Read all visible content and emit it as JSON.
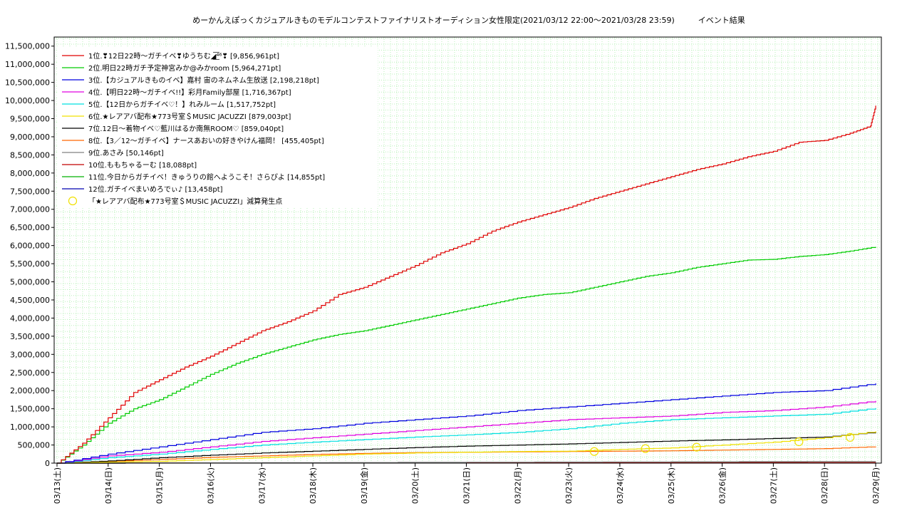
{
  "chart_data": {
    "type": "line",
    "title": "めーかんえぽっくカジュアルきものモデルコンテストファイナリストオーディション女性限定(2021/03/12 22:00～2021/03/28 23:59)　　　イベント結果",
    "xlabel": "",
    "ylabel": "",
    "ylim": [
      0,
      11750000
    ],
    "grid": true,
    "legend_placement": "top-left",
    "x_tick_labels": [
      "03/13(土)",
      "03/14(日)",
      "03/15(月)",
      "03/16(火)",
      "03/17(水)",
      "03/18(木)",
      "03/19(金)",
      "03/20(土)",
      "03/21(日)",
      "03/22(月)",
      "03/23(火)",
      "03/24(水)",
      "03/25(木)",
      "03/26(金)",
      "03/27(土)",
      "03/28(日)",
      "03/29(月)"
    ],
    "y_tick_labels": [
      "0",
      "500,000",
      "1,000,000",
      "1,500,000",
      "2,000,000",
      "2,500,000",
      "3,000,000",
      "3,500,000",
      "4,000,000",
      "4,500,000",
      "5,000,000",
      "5,500,000",
      "6,000,000",
      "6,500,000",
      "7,000,000",
      "7,500,000",
      "8,000,000",
      "8,500,000",
      "9,000,000",
      "9,500,000",
      "10,000,000",
      "10,500,000",
      "11,000,000",
      "11,500,000"
    ],
    "series": [
      {
        "name": "1位.❣12日22時〜ガチイベ❣ゆうちむ◢͟͞⁴⁶❣ [9,856,961pt]",
        "color": "#e00000",
        "x": [
          0,
          0.5,
          1,
          1.5,
          2,
          2.5,
          3,
          3.5,
          4,
          4.5,
          5,
          5.5,
          6,
          6.5,
          7,
          7.5,
          8,
          8.5,
          9,
          9.5,
          10,
          10.5,
          11,
          11.5,
          12,
          12.5,
          13,
          13.5,
          14,
          14.5,
          15,
          15.5,
          15.9,
          16
        ],
        "y": [
          0,
          550000,
          1250000,
          1950000,
          2300000,
          2650000,
          2950000,
          3300000,
          3650000,
          3900000,
          4200000,
          4650000,
          4850000,
          5150000,
          5450000,
          5800000,
          6050000,
          6400000,
          6650000,
          6850000,
          7050000,
          7300000,
          7500000,
          7700000,
          7900000,
          8100000,
          8250000,
          8450000,
          8600000,
          8850000,
          8900000,
          9100000,
          9300000,
          9856961
        ]
      },
      {
        "name": "2位.明日22時ガチ予定神宮みか@みかroom [5,964,271pt]",
        "color": "#00cc00",
        "x": [
          0,
          0.5,
          1,
          1.5,
          2,
          2.5,
          3,
          3.5,
          4,
          4.5,
          5,
          5.5,
          6,
          6.5,
          7,
          7.5,
          8,
          8.5,
          9,
          9.5,
          10,
          10.5,
          11,
          11.5,
          12,
          12.5,
          13,
          13.5,
          14,
          14.5,
          15,
          15.5,
          16
        ],
        "y": [
          0,
          500000,
          1100000,
          1500000,
          1750000,
          2100000,
          2450000,
          2750000,
          3000000,
          3200000,
          3400000,
          3550000,
          3650000,
          3800000,
          3950000,
          4100000,
          4250000,
          4400000,
          4550000,
          4650000,
          4700000,
          4850000,
          5000000,
          5150000,
          5250000,
          5400000,
          5500000,
          5600000,
          5620000,
          5700000,
          5750000,
          5850000,
          5964271
        ]
      },
      {
        "name": "3位.【カジュアルきものイベ】嘉村 宙のネムネム生放送 [2,198,218pt]",
        "color": "#0000e0",
        "x": [
          0,
          1,
          2,
          3,
          4,
          5,
          6,
          7,
          8,
          9,
          10,
          11,
          12,
          13,
          14,
          15,
          16
        ],
        "y": [
          0,
          250000,
          450000,
          650000,
          850000,
          950000,
          1100000,
          1200000,
          1300000,
          1450000,
          1550000,
          1650000,
          1750000,
          1850000,
          1950000,
          2000000,
          2198218
        ]
      },
      {
        "name": "4位.【明日22時〜ガチイベ!!】彩月Family部屋 [1,716,367pt]",
        "color": "#e000e0",
        "x": [
          0,
          1,
          2,
          3,
          4,
          5,
          6,
          7,
          8,
          9,
          10,
          11,
          12,
          13,
          14,
          15,
          16
        ],
        "y": [
          0,
          200000,
          300000,
          450000,
          600000,
          700000,
          800000,
          900000,
          1000000,
          1100000,
          1200000,
          1250000,
          1300000,
          1400000,
          1450000,
          1550000,
          1716367
        ]
      },
      {
        "name": "5位.【12日からガチイベ♡！】れみルーム [1,517,752pt]",
        "color": "#00e0e0",
        "x": [
          0,
          1,
          2,
          3,
          4,
          5,
          6,
          7,
          8,
          9,
          10,
          11,
          12,
          13,
          14,
          15,
          16
        ],
        "y": [
          0,
          150000,
          250000,
          380000,
          500000,
          580000,
          650000,
          720000,
          780000,
          850000,
          950000,
          1100000,
          1200000,
          1250000,
          1300000,
          1350000,
          1517752
        ]
      },
      {
        "name": "6位.★レアアバ配布★773号室＄MUSIC JACUZZI [879,003pt]",
        "color": "#f0e000",
        "x": [
          0,
          1,
          2,
          3,
          4,
          5,
          6,
          7,
          8,
          9,
          10,
          11,
          12,
          13,
          14,
          15,
          16
        ],
        "y": [
          0,
          30000,
          50000,
          100000,
          150000,
          200000,
          250000,
          280000,
          300000,
          320000,
          330000,
          380000,
          420000,
          500000,
          580000,
          700000,
          879003
        ]
      },
      {
        "name": "7位.12日〜着物イベ♡藍川はるか南無ROOM♡ [859,040pt]",
        "color": "#000000",
        "x": [
          0,
          1,
          2,
          3,
          4,
          5,
          6,
          7,
          8,
          9,
          10,
          11,
          12,
          13,
          14,
          15,
          16
        ],
        "y": [
          0,
          60000,
          150000,
          220000,
          280000,
          330000,
          380000,
          430000,
          470000,
          500000,
          530000,
          570000,
          610000,
          640000,
          680000,
          720000,
          859040
        ]
      },
      {
        "name": "8位.【3／12〜ガチイベ】ナースあおいの好きやけん福岡！ [455,405pt]",
        "color": "#ff6600",
        "x": [
          0,
          1,
          2,
          3,
          4,
          5,
          6,
          7,
          8,
          9,
          10,
          11,
          12,
          13,
          14,
          15,
          16
        ],
        "y": [
          0,
          50000,
          100000,
          160000,
          200000,
          240000,
          270000,
          290000,
          300000,
          310000,
          320000,
          330000,
          340000,
          360000,
          380000,
          400000,
          455405
        ]
      },
      {
        "name": "9位.あさみ [50,146pt]",
        "color": "#808080",
        "x": [
          0,
          8,
          16
        ],
        "y": [
          0,
          25000,
          50146
        ]
      },
      {
        "name": "10位.ももちゃるーむ [18,088pt]",
        "color": "#c00000",
        "x": [
          0,
          8,
          16
        ],
        "y": [
          0,
          9000,
          18088
        ]
      },
      {
        "name": "11位.今日からガチイベ！きゅうりの館へようこそ！さらぴよ [14,855pt]",
        "color": "#00b000",
        "x": [
          0,
          8,
          16
        ],
        "y": [
          0,
          7000,
          14855
        ]
      },
      {
        "name": "12位.ガチイベまいめろでぃ♪ [13,458pt]",
        "color": "#0000b0",
        "x": [
          0,
          8,
          16
        ],
        "y": [
          0,
          6000,
          13458
        ]
      }
    ],
    "markers": {
      "name": "「★レアアバ配布★773号室＄MUSIC JACUZZI」減算発生点",
      "color": "#f0e000",
      "x": [
        10.5,
        11.5,
        12.5,
        14.5,
        15.5
      ],
      "y": [
        320000,
        400000,
        440000,
        590000,
        710000
      ]
    }
  }
}
